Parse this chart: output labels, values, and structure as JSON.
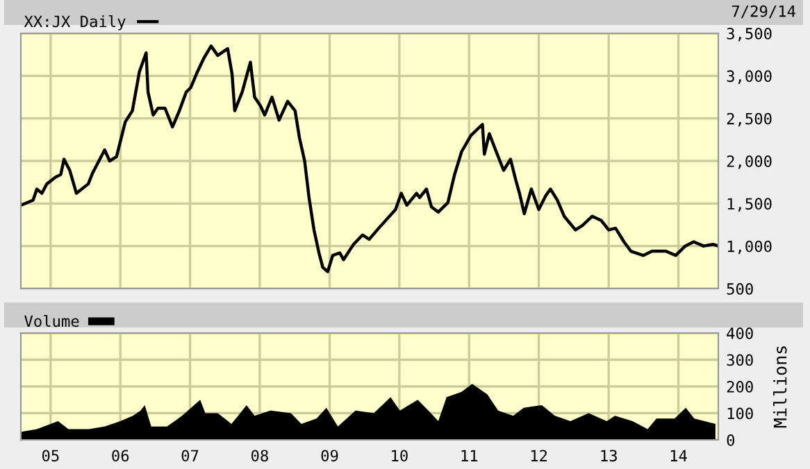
{
  "chart_data": [
    {
      "type": "line",
      "legend": "top left",
      "grid": true,
      "tick_labels": "y",
      "annotations": [
        "7/29/14"
      ],
      "xlim": [
        "2004-07-29",
        "2014-07-29"
      ],
      "xticks": [
        {
          "value": "2005-01-01",
          "label": null
        },
        {
          "value": "2006-01-01",
          "label": null
        },
        {
          "value": "2007-01-01",
          "label": null
        },
        {
          "value": "2008-01-01",
          "label": null
        },
        {
          "value": "2009-01-01",
          "label": null
        },
        {
          "value": "2010-01-01",
          "label": null
        },
        {
          "value": "2011-01-01",
          "label": null
        },
        {
          "value": "2012-01-01",
          "label": null
        },
        {
          "value": "2013-01-01",
          "label": null
        },
        {
          "value": "2014-01-01",
          "label": null
        }
      ],
      "ylim": [
        500,
        3500
      ],
      "yticks": [
        500,
        {
          "value": 1000,
          "label": "1,000"
        },
        {
          "value": 1500,
          "label": "1,500"
        },
        {
          "value": 2000,
          "label": "2,000"
        },
        {
          "value": 2500,
          "label": "2,500"
        },
        {
          "value": 3000,
          "label": "3,000"
        },
        {
          "value": 3500,
          "label": "3,500"
        }
      ],
      "x": [
        "2004-07-29",
        "2004-10-01",
        "2004-10-21",
        "2004-11-16",
        "2004-12-12",
        "2005-01-27",
        "2005-02-23",
        "2005-03-12",
        "2005-04-11",
        "2005-05-16",
        "2005-07-17",
        "2005-08-09",
        "2005-10-11",
        "2005-11-06",
        "2005-12-12",
        "2006-01-27",
        "2006-03-05",
        "2006-04-11",
        "2006-05-16",
        "2006-05-26",
        "2006-06-22",
        "2006-07-17",
        "2006-08-23",
        "2006-10-01",
        "2006-11-06",
        "2006-12-12",
        "2007-01-04",
        "2007-02-09",
        "2007-03-15",
        "2007-04-21",
        "2007-05-26",
        "2007-07-17",
        "2007-08-09",
        "2007-08-23",
        "2007-10-01",
        "2007-11-13",
        "2007-12-05",
        "2008-01-04",
        "2008-01-27",
        "2008-03-05",
        "2008-04-11",
        "2008-05-26",
        "2008-07-04",
        "2008-07-27",
        "2008-08-23",
        "2008-09-15",
        "2008-10-11",
        "2008-11-06",
        "2008-11-26",
        "2008-12-22",
        "2009-01-17",
        "2009-02-23",
        "2009-03-15",
        "2009-05-06",
        "2009-06-22",
        "2009-07-27",
        "2009-09-15",
        "2009-10-21",
        "2009-12-12",
        "2010-01-11",
        "2010-02-09",
        "2010-04-01",
        "2010-04-17",
        "2010-05-23",
        "2010-06-18",
        "2010-07-24",
        "2010-09-12",
        "2010-10-17",
        "2010-11-23",
        "2011-01-11",
        "2011-03-12",
        "2011-03-22",
        "2011-04-17",
        "2011-05-23",
        "2011-07-01",
        "2011-08-06",
        "2011-09-02",
        "2011-09-22",
        "2011-10-17",
        "2011-11-23",
        "2012-01-01",
        "2012-02-06",
        "2012-03-02",
        "2012-04-07",
        "2012-05-13",
        "2012-07-11",
        "2012-08-16",
        "2012-10-07",
        "2012-11-23",
        "2013-01-01",
        "2013-02-06",
        "2013-03-22",
        "2013-04-27",
        "2013-07-01",
        "2013-08-16",
        "2013-10-27",
        "2013-12-18",
        "2014-02-06",
        "2014-03-22",
        "2014-05-13",
        "2014-07-01",
        "2014-07-29"
      ],
      "series": [
        {
          "name": "XX:JX Daily",
          "color": "#000000",
          "values": [
            1480,
            1540,
            1670,
            1620,
            1730,
            1810,
            1840,
            2020,
            1890,
            1620,
            1730,
            1860,
            2130,
            2000,
            2050,
            2460,
            2590,
            3050,
            3270,
            2810,
            2540,
            2620,
            2620,
            2400,
            2590,
            2810,
            2860,
            3050,
            3210,
            3350,
            3240,
            3320,
            3020,
            2590,
            2810,
            3160,
            2750,
            2650,
            2540,
            2750,
            2480,
            2700,
            2590,
            2270,
            2000,
            1570,
            1190,
            920,
            750,
            700,
            890,
            920,
            840,
            1020,
            1130,
            1080,
            1210,
            1300,
            1430,
            1620,
            1480,
            1620,
            1570,
            1670,
            1460,
            1400,
            1510,
            1840,
            2110,
            2300,
            2430,
            2080,
            2320,
            2110,
            1890,
            2020,
            1780,
            1620,
            1380,
            1670,
            1430,
            1590,
            1670,
            1540,
            1350,
            1190,
            1240,
            1350,
            1300,
            1190,
            1210,
            1050,
            940,
            890,
            940,
            940,
            890,
            1000,
            1050,
            1000,
            1020,
            1000
          ]
        }
      ]
    },
    {
      "type": "area",
      "legend": "top left",
      "grid": true,
      "ylabel": "Millions",
      "xlim": [
        "2004-07-29",
        "2014-07-29"
      ],
      "xticks": [
        {
          "value": "2005-01-01",
          "label": "05"
        },
        {
          "value": "2006-01-01",
          "label": "06"
        },
        {
          "value": "2007-01-01",
          "label": "07"
        },
        {
          "value": "2008-01-01",
          "label": "08"
        },
        {
          "value": "2009-01-01",
          "label": "09"
        },
        {
          "value": "2010-01-01",
          "label": "10"
        },
        {
          "value": "2011-01-01",
          "label": "11"
        },
        {
          "value": "2012-01-01",
          "label": "12"
        },
        {
          "value": "2013-01-01",
          "label": "13"
        },
        {
          "value": "2014-01-01",
          "label": "14"
        }
      ],
      "ylim": [
        0,
        400
      ],
      "yticks": [
        0,
        100,
        200,
        300,
        400
      ],
      "x": [
        "2004-07-29",
        "2004-10-21",
        "2005-02-09",
        "2005-04-04",
        "2005-07-21",
        "2005-10-11",
        "2006-01-01",
        "2006-03-08",
        "2006-04-17",
        "2006-05-09",
        "2006-06-12",
        "2006-09-02",
        "2006-11-20",
        "2007-02-23",
        "2007-03-22",
        "2007-05-26",
        "2007-08-06",
        "2007-10-24",
        "2007-12-05",
        "2008-02-26",
        "2008-06-12",
        "2008-08-06",
        "2008-10-24",
        "2008-12-15",
        "2009-02-13",
        "2009-05-16",
        "2009-08-20",
        "2009-11-16",
        "2010-01-04",
        "2010-04-07",
        "2010-06-02",
        "2010-07-24",
        "2010-09-05",
        "2010-11-23",
        "2011-01-17",
        "2011-04-07",
        "2011-06-02",
        "2011-08-20",
        "2011-10-14",
        "2012-01-17",
        "2012-03-25",
        "2012-06-15",
        "2012-09-18",
        "2012-12-22",
        "2013-02-03",
        "2013-05-06",
        "2013-07-24",
        "2013-09-08",
        "2013-12-12",
        "2014-02-09",
        "2014-03-25",
        "2014-07-14"
      ],
      "series": [
        {
          "name": "Volume",
          "color": "#000000",
          "values": [
            30,
            40,
            70,
            40,
            40,
            50,
            70,
            90,
            110,
            130,
            50,
            50,
            90,
            150,
            100,
            100,
            60,
            130,
            90,
            110,
            100,
            60,
            80,
            120,
            50,
            110,
            100,
            160,
            110,
            150,
            110,
            70,
            160,
            180,
            210,
            170,
            110,
            90,
            120,
            130,
            90,
            70,
            100,
            70,
            90,
            70,
            40,
            80,
            80,
            120,
            80,
            60
          ]
        }
      ]
    }
  ]
}
